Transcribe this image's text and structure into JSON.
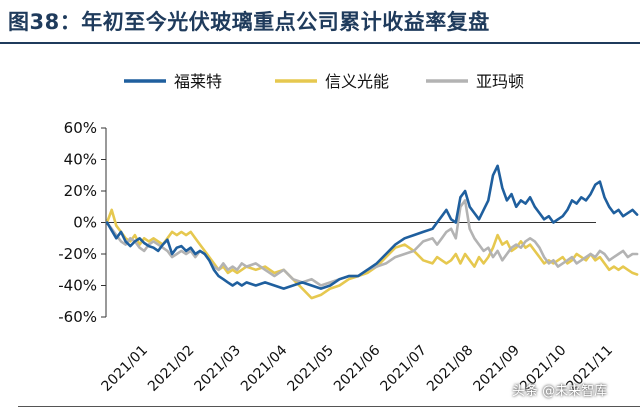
{
  "header": {
    "title": "图38：年初至今光伏玻璃重点公司累计收益率复盘"
  },
  "watermark": "头条 @未来智库",
  "chart_data": {
    "type": "line",
    "title": "",
    "xlabel": "",
    "ylabel": "",
    "ylim": [
      -60,
      60
    ],
    "y_ticks": [
      -60,
      -40,
      -20,
      0,
      20,
      40,
      60
    ],
    "y_tick_format": "percent",
    "x_ticks": [
      "2021/01",
      "2021/02",
      "2021/03",
      "2021/04",
      "2021/05",
      "2021/06",
      "2021/07",
      "2021/08",
      "2021/09",
      "2021/10",
      "2021/11"
    ],
    "x_domain": [
      0,
      11.4
    ],
    "legend_position": "top-center",
    "grid": false,
    "series": [
      {
        "name": "福莱特",
        "color": "#1f5f9e",
        "points": [
          [
            0.0,
            0
          ],
          [
            0.1,
            -5
          ],
          [
            0.2,
            -10
          ],
          [
            0.3,
            -6
          ],
          [
            0.4,
            -12
          ],
          [
            0.5,
            -15
          ],
          [
            0.6,
            -12
          ],
          [
            0.7,
            -10
          ],
          [
            0.8,
            -13
          ],
          [
            0.9,
            -15
          ],
          [
            1.0,
            -16
          ],
          [
            1.1,
            -18
          ],
          [
            1.2,
            -14
          ],
          [
            1.3,
            -11
          ],
          [
            1.4,
            -20
          ],
          [
            1.5,
            -16
          ],
          [
            1.6,
            -15
          ],
          [
            1.7,
            -18
          ],
          [
            1.8,
            -16
          ],
          [
            1.9,
            -20
          ],
          [
            2.0,
            -18
          ],
          [
            2.1,
            -20
          ],
          [
            2.2,
            -24
          ],
          [
            2.3,
            -30
          ],
          [
            2.4,
            -34
          ],
          [
            2.5,
            -36
          ],
          [
            2.6,
            -38
          ],
          [
            2.7,
            -40
          ],
          [
            2.8,
            -38
          ],
          [
            2.9,
            -40
          ],
          [
            3.0,
            -38
          ],
          [
            3.2,
            -40
          ],
          [
            3.4,
            -38
          ],
          [
            3.6,
            -40
          ],
          [
            3.8,
            -42
          ],
          [
            4.0,
            -40
          ],
          [
            4.2,
            -38
          ],
          [
            4.4,
            -40
          ],
          [
            4.6,
            -42
          ],
          [
            4.8,
            -40
          ],
          [
            5.0,
            -36
          ],
          [
            5.2,
            -34
          ],
          [
            5.4,
            -34
          ],
          [
            5.6,
            -30
          ],
          [
            5.8,
            -26
          ],
          [
            6.0,
            -20
          ],
          [
            6.2,
            -14
          ],
          [
            6.4,
            -10
          ],
          [
            6.6,
            -8
          ],
          [
            6.8,
            -6
          ],
          [
            7.0,
            -4
          ],
          [
            7.1,
            0
          ],
          [
            7.2,
            4
          ],
          [
            7.3,
            8
          ],
          [
            7.4,
            2
          ],
          [
            7.5,
            0
          ],
          [
            7.6,
            16
          ],
          [
            7.7,
            20
          ],
          [
            7.8,
            10
          ],
          [
            7.9,
            6
          ],
          [
            8.0,
            2
          ],
          [
            8.1,
            8
          ],
          [
            8.2,
            14
          ],
          [
            8.3,
            30
          ],
          [
            8.4,
            36
          ],
          [
            8.5,
            22
          ],
          [
            8.6,
            14
          ],
          [
            8.7,
            18
          ],
          [
            8.8,
            10
          ],
          [
            8.9,
            14
          ],
          [
            9.0,
            12
          ],
          [
            9.1,
            16
          ],
          [
            9.2,
            10
          ],
          [
            9.3,
            6
          ],
          [
            9.4,
            2
          ],
          [
            9.5,
            4
          ],
          [
            9.6,
            0
          ],
          [
            9.7,
            2
          ],
          [
            9.8,
            4
          ],
          [
            9.9,
            8
          ],
          [
            10.0,
            14
          ],
          [
            10.1,
            12
          ],
          [
            10.2,
            16
          ],
          [
            10.3,
            14
          ],
          [
            10.4,
            18
          ],
          [
            10.5,
            24
          ],
          [
            10.6,
            26
          ],
          [
            10.7,
            16
          ],
          [
            10.8,
            10
          ],
          [
            10.9,
            6
          ],
          [
            11.0,
            8
          ],
          [
            11.1,
            4
          ],
          [
            11.2,
            6
          ],
          [
            11.3,
            8
          ],
          [
            11.4,
            5
          ]
        ]
      },
      {
        "name": "信义光能",
        "color": "#e6c84f",
        "points": [
          [
            0.0,
            0
          ],
          [
            0.1,
            8
          ],
          [
            0.2,
            -2
          ],
          [
            0.3,
            -6
          ],
          [
            0.4,
            -10
          ],
          [
            0.5,
            -12
          ],
          [
            0.6,
            -8
          ],
          [
            0.7,
            -14
          ],
          [
            0.8,
            -10
          ],
          [
            0.9,
            -12
          ],
          [
            1.0,
            -10
          ],
          [
            1.1,
            -12
          ],
          [
            1.2,
            -14
          ],
          [
            1.3,
            -10
          ],
          [
            1.4,
            -6
          ],
          [
            1.5,
            -8
          ],
          [
            1.6,
            -6
          ],
          [
            1.7,
            -8
          ],
          [
            1.8,
            -6
          ],
          [
            1.9,
            -10
          ],
          [
            2.0,
            -14
          ],
          [
            2.1,
            -18
          ],
          [
            2.2,
            -22
          ],
          [
            2.3,
            -26
          ],
          [
            2.4,
            -30
          ],
          [
            2.5,
            -28
          ],
          [
            2.6,
            -32
          ],
          [
            2.7,
            -30
          ],
          [
            2.8,
            -32
          ],
          [
            2.9,
            -30
          ],
          [
            3.0,
            -28
          ],
          [
            3.2,
            -30
          ],
          [
            3.4,
            -28
          ],
          [
            3.6,
            -32
          ],
          [
            3.8,
            -30
          ],
          [
            4.0,
            -36
          ],
          [
            4.2,
            -42
          ],
          [
            4.4,
            -48
          ],
          [
            4.6,
            -46
          ],
          [
            4.8,
            -42
          ],
          [
            5.0,
            -40
          ],
          [
            5.2,
            -36
          ],
          [
            5.4,
            -34
          ],
          [
            5.6,
            -32
          ],
          [
            5.8,
            -28
          ],
          [
            6.0,
            -22
          ],
          [
            6.2,
            -16
          ],
          [
            6.4,
            -14
          ],
          [
            6.6,
            -18
          ],
          [
            6.8,
            -24
          ],
          [
            7.0,
            -26
          ],
          [
            7.1,
            -22
          ],
          [
            7.2,
            -24
          ],
          [
            7.3,
            -26
          ],
          [
            7.4,
            -24
          ],
          [
            7.5,
            -20
          ],
          [
            7.6,
            -26
          ],
          [
            7.7,
            -20
          ],
          [
            7.8,
            -24
          ],
          [
            7.9,
            -28
          ],
          [
            8.0,
            -22
          ],
          [
            8.1,
            -26
          ],
          [
            8.2,
            -22
          ],
          [
            8.3,
            -16
          ],
          [
            8.4,
            -8
          ],
          [
            8.5,
            -14
          ],
          [
            8.6,
            -12
          ],
          [
            8.7,
            -18
          ],
          [
            8.8,
            -16
          ],
          [
            8.9,
            -12
          ],
          [
            9.0,
            -16
          ],
          [
            9.1,
            -14
          ],
          [
            9.2,
            -18
          ],
          [
            9.3,
            -22
          ],
          [
            9.4,
            -26
          ],
          [
            9.5,
            -24
          ],
          [
            9.6,
            -26
          ],
          [
            9.7,
            -24
          ],
          [
            9.8,
            -22
          ],
          [
            9.9,
            -26
          ],
          [
            10.0,
            -24
          ],
          [
            10.1,
            -20
          ],
          [
            10.2,
            -22
          ],
          [
            10.3,
            -24
          ],
          [
            10.4,
            -20
          ],
          [
            10.5,
            -24
          ],
          [
            10.6,
            -22
          ],
          [
            10.7,
            -26
          ],
          [
            10.8,
            -30
          ],
          [
            10.9,
            -28
          ],
          [
            11.0,
            -30
          ],
          [
            11.1,
            -28
          ],
          [
            11.2,
            -30
          ],
          [
            11.3,
            -32
          ],
          [
            11.4,
            -33
          ]
        ]
      },
      {
        "name": "亚玛顿",
        "color": "#b3b3b3",
        "points": [
          [
            0.0,
            0
          ],
          [
            0.1,
            -4
          ],
          [
            0.2,
            -8
          ],
          [
            0.3,
            -12
          ],
          [
            0.4,
            -14
          ],
          [
            0.5,
            -10
          ],
          [
            0.6,
            -12
          ],
          [
            0.7,
            -16
          ],
          [
            0.8,
            -18
          ],
          [
            0.9,
            -14
          ],
          [
            1.0,
            -12
          ],
          [
            1.1,
            -14
          ],
          [
            1.2,
            -16
          ],
          [
            1.3,
            -18
          ],
          [
            1.4,
            -22
          ],
          [
            1.5,
            -20
          ],
          [
            1.6,
            -18
          ],
          [
            1.7,
            -20
          ],
          [
            1.8,
            -18
          ],
          [
            1.9,
            -22
          ],
          [
            2.0,
            -18
          ],
          [
            2.1,
            -20
          ],
          [
            2.2,
            -24
          ],
          [
            2.3,
            -28
          ],
          [
            2.4,
            -30
          ],
          [
            2.5,
            -26
          ],
          [
            2.6,
            -30
          ],
          [
            2.7,
            -28
          ],
          [
            2.8,
            -30
          ],
          [
            2.9,
            -26
          ],
          [
            3.0,
            -28
          ],
          [
            3.2,
            -26
          ],
          [
            3.4,
            -30
          ],
          [
            3.6,
            -34
          ],
          [
            3.8,
            -30
          ],
          [
            4.0,
            -36
          ],
          [
            4.2,
            -38
          ],
          [
            4.4,
            -36
          ],
          [
            4.6,
            -40
          ],
          [
            4.8,
            -38
          ],
          [
            5.0,
            -36
          ],
          [
            5.2,
            -34
          ],
          [
            5.4,
            -34
          ],
          [
            5.6,
            -30
          ],
          [
            5.8,
            -28
          ],
          [
            6.0,
            -26
          ],
          [
            6.2,
            -22
          ],
          [
            6.4,
            -20
          ],
          [
            6.6,
            -18
          ],
          [
            6.8,
            -12
          ],
          [
            7.0,
            -10
          ],
          [
            7.1,
            -14
          ],
          [
            7.2,
            -10
          ],
          [
            7.3,
            -6
          ],
          [
            7.4,
            -4
          ],
          [
            7.5,
            -10
          ],
          [
            7.6,
            10
          ],
          [
            7.7,
            14
          ],
          [
            7.8,
            -4
          ],
          [
            7.9,
            -10
          ],
          [
            8.0,
            -14
          ],
          [
            8.1,
            -18
          ],
          [
            8.2,
            -16
          ],
          [
            8.3,
            -22
          ],
          [
            8.4,
            -18
          ],
          [
            8.5,
            -24
          ],
          [
            8.6,
            -20
          ],
          [
            8.7,
            -16
          ],
          [
            8.8,
            -14
          ],
          [
            8.9,
            -16
          ],
          [
            9.0,
            -12
          ],
          [
            9.1,
            -10
          ],
          [
            9.2,
            -12
          ],
          [
            9.3,
            -16
          ],
          [
            9.4,
            -22
          ],
          [
            9.5,
            -26
          ],
          [
            9.6,
            -24
          ],
          [
            9.7,
            -28
          ],
          [
            9.8,
            -26
          ],
          [
            9.9,
            -24
          ],
          [
            10.0,
            -22
          ],
          [
            10.1,
            -26
          ],
          [
            10.2,
            -24
          ],
          [
            10.3,
            -22
          ],
          [
            10.4,
            -20
          ],
          [
            10.5,
            -22
          ],
          [
            10.6,
            -18
          ],
          [
            10.7,
            -20
          ],
          [
            10.8,
            -24
          ],
          [
            10.9,
            -22
          ],
          [
            11.0,
            -20
          ],
          [
            11.1,
            -18
          ],
          [
            11.2,
            -22
          ],
          [
            11.3,
            -20
          ],
          [
            11.4,
            -20
          ]
        ]
      }
    ]
  }
}
